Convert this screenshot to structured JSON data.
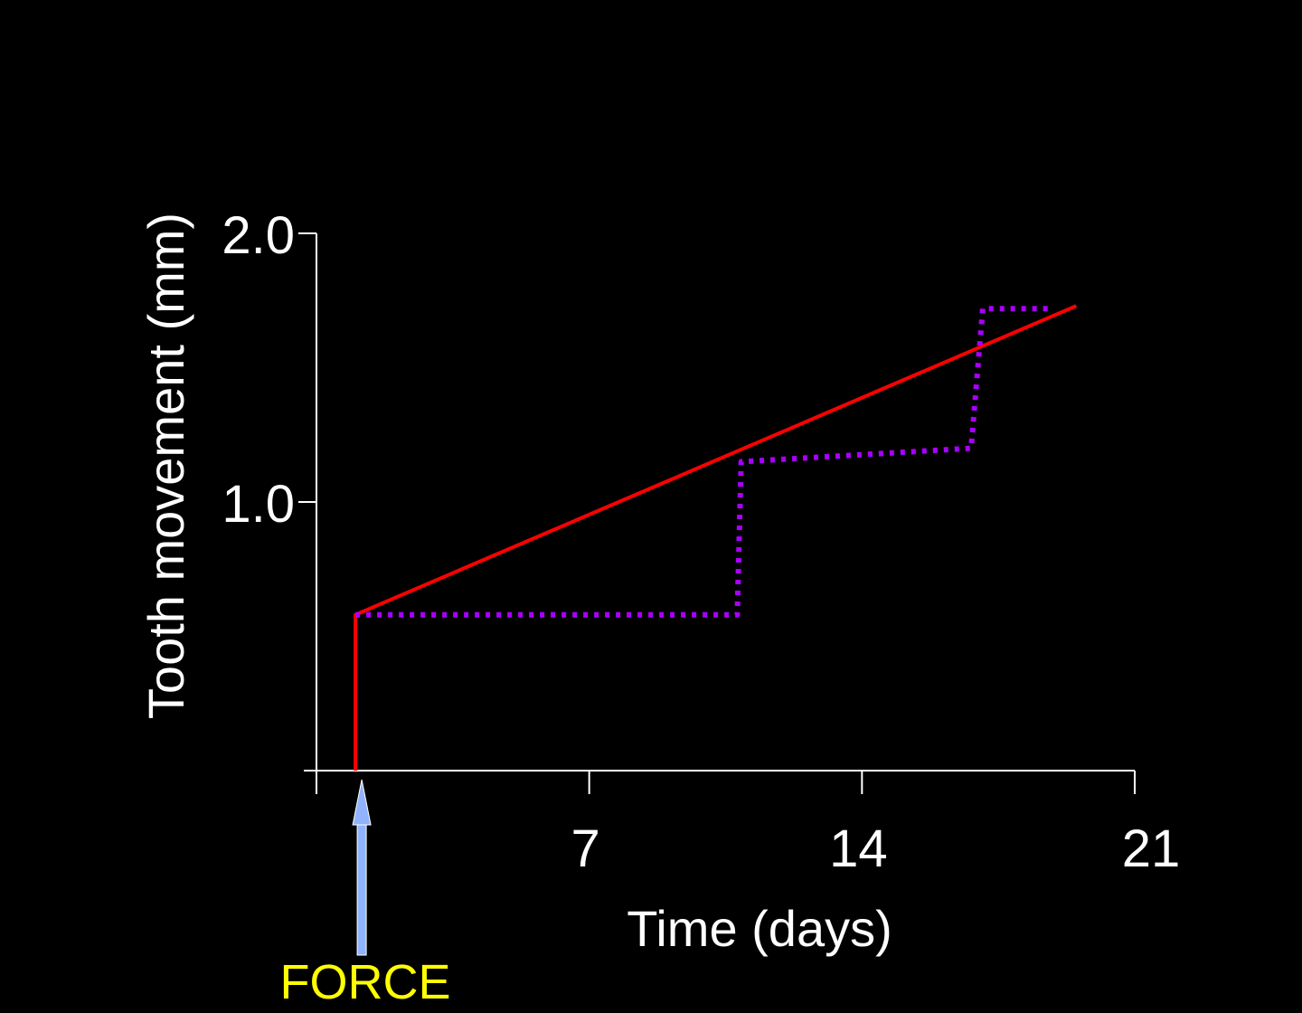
{
  "chart_data": {
    "type": "line",
    "xlabel": "Time (days)",
    "ylabel": "Tooth movement (mm)",
    "xlim": [
      0,
      21
    ],
    "ylim": [
      0,
      2.0
    ],
    "x_ticks": [
      0,
      7,
      14,
      21
    ],
    "x_tick_labels": [
      "",
      "7",
      "14",
      "21"
    ],
    "y_ticks": [
      0,
      1.0,
      2.0
    ],
    "y_tick_labels": [
      "",
      "1.0",
      "2.0"
    ],
    "grid": false,
    "series": [
      {
        "color": "#ff0000",
        "style": "solid",
        "points": [
          [
            1,
            0
          ],
          [
            1,
            0.58
          ],
          [
            19.5,
            1.73
          ]
        ]
      },
      {
        "color": "#aa00ff",
        "style": "dotted",
        "points": [
          [
            1,
            0.58
          ],
          [
            10.8,
            0.58
          ],
          [
            10.9,
            1.15
          ],
          [
            16.8,
            1.2
          ],
          [
            17.1,
            1.72
          ],
          [
            18.9,
            1.72
          ]
        ]
      }
    ],
    "annotations": [
      {
        "text": "FORCE",
        "x": 1,
        "color": "#ffff00",
        "arrow_color": "#8fb3ff"
      }
    ]
  }
}
